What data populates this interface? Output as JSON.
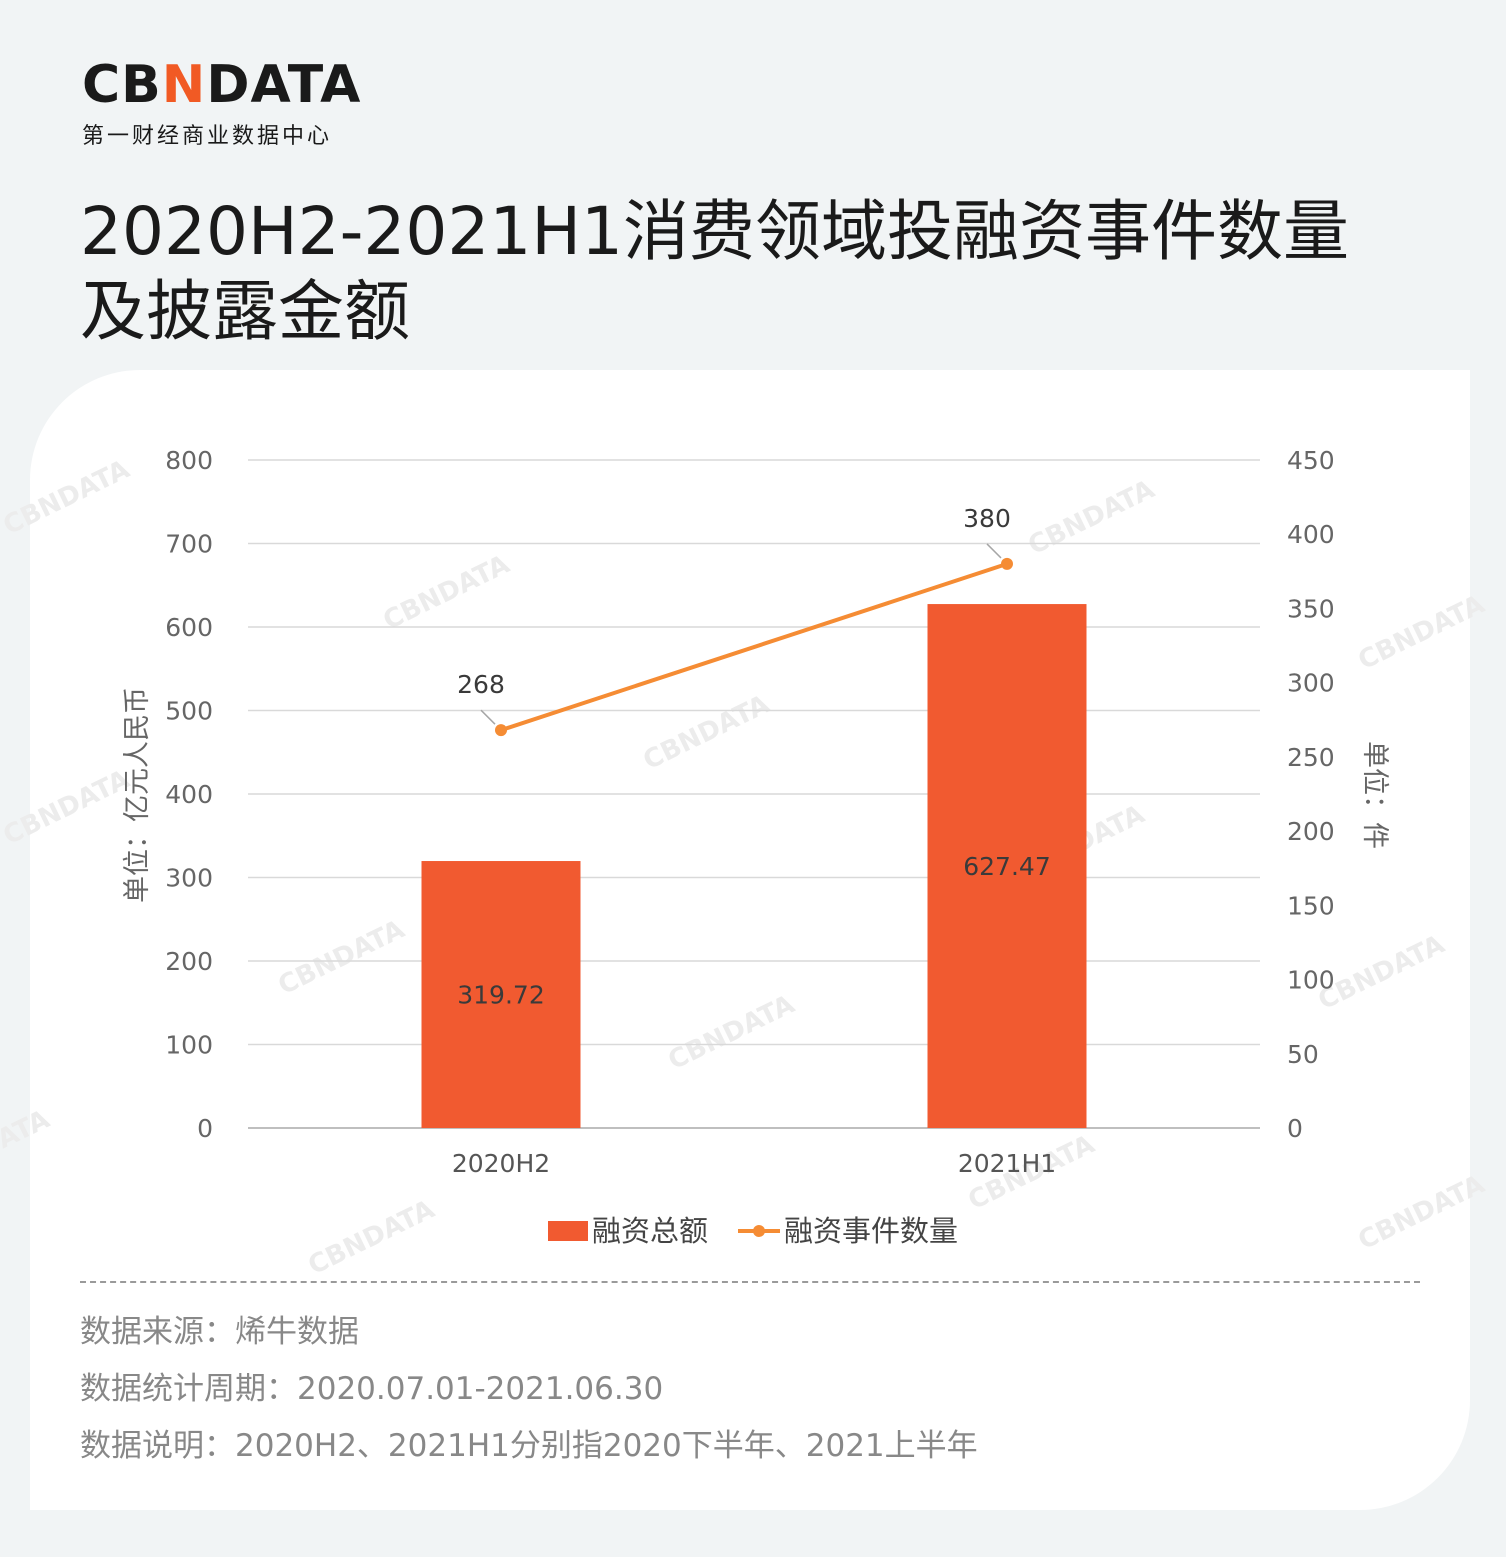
{
  "logo": {
    "brand_prefix": "CB",
    "brand_n": "N",
    "brand_suffix": "DATA",
    "subtitle": "第一财经商业数据中心"
  },
  "title_line1": "2020H2-2021H1消费领域投融资事件数量",
  "title_line2": "及披露金额",
  "chart_data": {
    "type": "bar",
    "categories": [
      "2020H2",
      "2021H1"
    ],
    "series": [
      {
        "name": "融资总额",
        "type": "bar",
        "axis": "left",
        "values": [
          319.72,
          627.47
        ],
        "labels": [
          "319.72",
          "627.47"
        ],
        "color": "#f15a30"
      },
      {
        "name": "融资事件数量",
        "type": "line",
        "axis": "right",
        "values": [
          268,
          380
        ],
        "labels": [
          "268",
          "380"
        ],
        "color": "#f58c34"
      }
    ],
    "y_left": {
      "label": "单位：亿元人民币",
      "min": 0,
      "max": 800,
      "ticks": [
        0,
        100,
        200,
        300,
        400,
        500,
        600,
        700,
        800
      ]
    },
    "y_right": {
      "label": "单位：件",
      "min": 0,
      "max": 450,
      "ticks": [
        0,
        50,
        100,
        150,
        200,
        250,
        300,
        350,
        400,
        450
      ]
    },
    "grid": true,
    "legend": "bottom-center",
    "watermark": "CBNDATA"
  },
  "notes": {
    "source": "数据来源：烯牛数据",
    "period": "数据统计周期：2020.07.01-2021.06.30",
    "desc": "数据说明：2020H2、2021H1分别指2020下半年、2021上半年"
  }
}
